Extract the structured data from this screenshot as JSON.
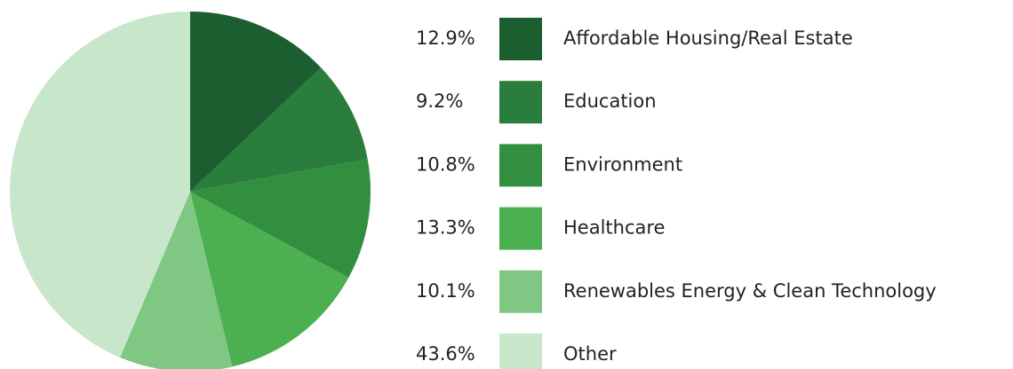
{
  "chart_data": {
    "type": "pie",
    "categories": [
      "Affordable Housing/Real Estate",
      "Education",
      "Environment",
      "Healthcare",
      "Renewables Energy & Clean Technology",
      "Other"
    ],
    "values": [
      12.9,
      9.2,
      10.8,
      13.3,
      10.1,
      43.6
    ],
    "value_labels": [
      "12.9%",
      "9.2%",
      "10.8%",
      "13.3%",
      "10.1%",
      "43.6%"
    ],
    "colors": [
      "#1b5e30",
      "#2a7d3c",
      "#328f40",
      "#4caf50",
      "#81c784",
      "#c8e6c9"
    ]
  }
}
